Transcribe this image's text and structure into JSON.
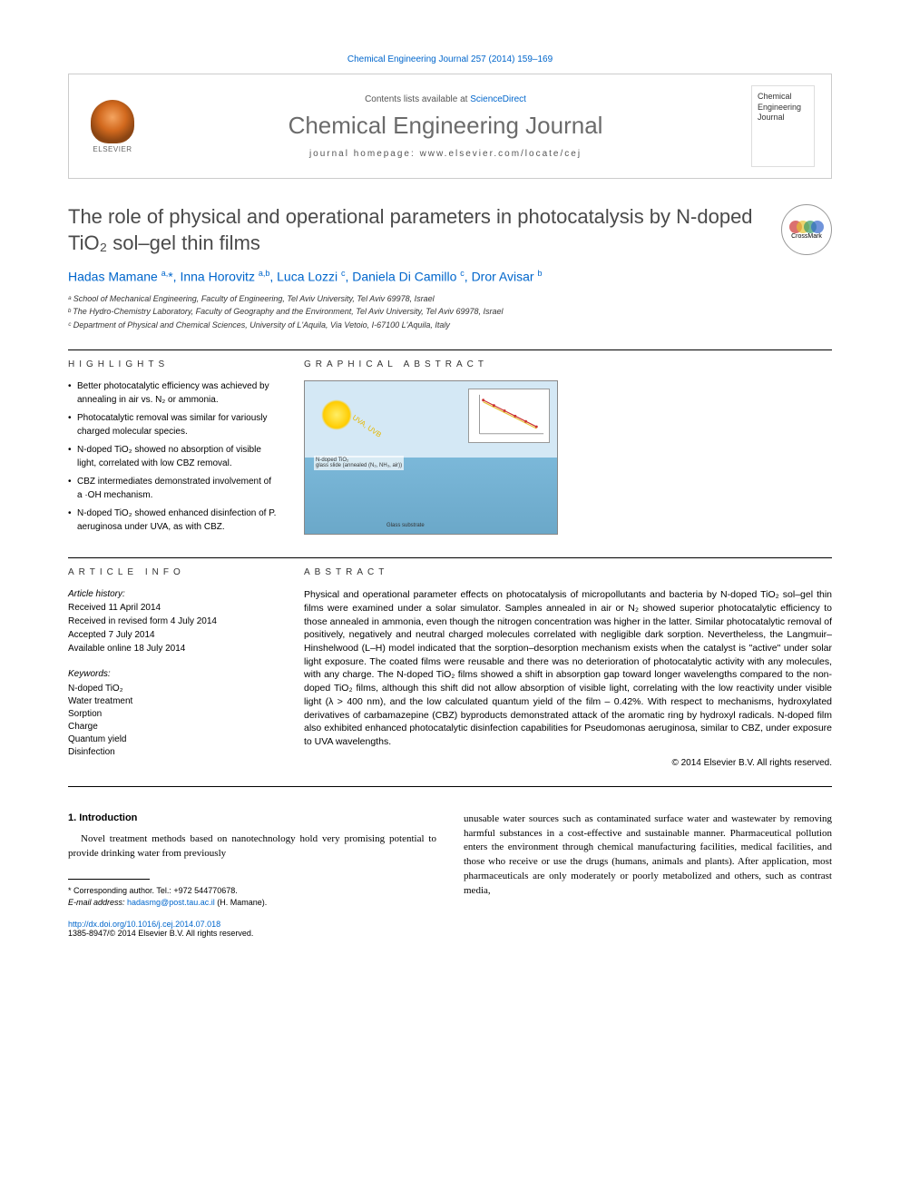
{
  "citation": "Chemical Engineering Journal 257 (2014) 159–169",
  "header": {
    "contents_prefix": "Contents lists available at ",
    "contents_link": "ScienceDirect",
    "journal_name": "Chemical Engineering Journal",
    "homepage_prefix": "journal homepage: ",
    "homepage_url": "www.elsevier.com/locate/cej",
    "publisher": "ELSEVIER",
    "cover_text": "Chemical Engineering Journal"
  },
  "crossmark_label": "CrossMark",
  "title": "The role of physical and operational parameters in photocatalysis by N-doped TiO₂ sol–gel thin films",
  "authors_html": "Hadas Mamane <sup>a,</sup>*, Inna Horovitz <sup>a,b</sup>, Luca Lozzi <sup>c</sup>, Daniela Di Camillo <sup>c</sup>, Dror Avisar <sup>b</sup>",
  "affiliations": [
    "ᵃ School of Mechanical Engineering, Faculty of Engineering, Tel Aviv University, Tel Aviv 69978, Israel",
    "ᵇ The Hydro-Chemistry Laboratory, Faculty of Geography and the Environment, Tel Aviv University, Tel Aviv 69978, Israel",
    "ᶜ Department of Physical and Chemical Sciences, University of L'Aquila, Via Vetoio, I-67100 L'Aquila, Italy"
  ],
  "highlights": {
    "label": "HIGHLIGHTS",
    "items": [
      "Better photocatalytic efficiency was achieved by annealing in air vs. N₂ or ammonia.",
      "Photocatalytic removal was similar for variously charged molecular species.",
      "N-doped TiO₂ showed no absorption of visible light, correlated with low CBZ removal.",
      "CBZ intermediates demonstrated involvement of a ·OH mechanism.",
      "N-doped TiO₂ showed enhanced disinfection of P. aeruginosa under UVA, as with CBZ."
    ]
  },
  "graphical_abstract_label": "GRAPHICAL ABSTRACT",
  "article_info": {
    "label": "ARTICLE INFO",
    "history_heading": "Article history:",
    "history": [
      "Received 11 April 2014",
      "Received in revised form 4 July 2014",
      "Accepted 7 July 2014",
      "Available online 18 July 2014"
    ],
    "keywords_heading": "Keywords:",
    "keywords": [
      "N-doped TiO₂",
      "Water treatment",
      "Sorption",
      "Charge",
      "Quantum yield",
      "Disinfection"
    ]
  },
  "abstract": {
    "label": "ABSTRACT",
    "text": "Physical and operational parameter effects on photocatalysis of micropollutants and bacteria by N-doped TiO₂ sol–gel thin films were examined under a solar simulator. Samples annealed in air or N₂ showed superior photocatalytic efficiency to those annealed in ammonia, even though the nitrogen concentration was higher in the latter. Similar photocatalytic removal of positively, negatively and neutral charged molecules correlated with negligible dark sorption. Nevertheless, the Langmuir–Hinshelwood (L–H) model indicated that the sorption–desorption mechanism exists when the catalyst is \"active\" under solar light exposure. The coated films were reusable and there was no deterioration of photocatalytic activity with any molecules, with any charge. The N-doped TiO₂ films showed a shift in absorption gap toward longer wavelengths compared to the non-doped TiO₂ films, although this shift did not allow absorption of visible light, correlating with the low reactivity under visible light (λ > 400 nm), and the low calculated quantum yield of the film – 0.42%. With respect to mechanisms, hydroxylated derivatives of carbamazepine (CBZ) byproducts demonstrated attack of the aromatic ring by hydroxyl radicals. N-doped film also exhibited enhanced photocatalytic disinfection capabilities for Pseudomonas aeruginosa, similar to CBZ, under exposure to UVA wavelengths.",
    "copyright": "© 2014 Elsevier B.V. All rights reserved."
  },
  "body": {
    "intro_heading": "1. Introduction",
    "col1_text": "Novel treatment methods based on nanotechnology hold very promising potential to provide drinking water from previously",
    "col2_text": "unusable water sources such as contaminated surface water and wastewater by removing harmful substances in a cost-effective and sustainable manner. Pharmaceutical pollution enters the environment through chemical manufacturing facilities, medical facilities, and those who receive or use the drugs (humans, animals and plants). After application, most pharmaceuticals are only moderately or poorly metabolized and others, such as contrast media,"
  },
  "footnote": {
    "corresponding": "* Corresponding author. Tel.: +972 544770678.",
    "email_label": "E-mail address: ",
    "email": "hadasmg@post.tau.ac.il",
    "email_name": " (H. Mamane)."
  },
  "doi": {
    "url": "http://dx.doi.org/10.1016/j.cej.2014.07.018",
    "issn_line": "1385-8947/© 2014 Elsevier B.V. All rights reserved."
  },
  "colors": {
    "link": "#0066cc",
    "heading_gray": "#6b6b6b",
    "title_gray": "#4a4a4a",
    "crossmark_red": "#cc3333",
    "crossmark_yellow": "#e6c233",
    "crossmark_blue": "#3366cc",
    "crossmark_green": "#339966"
  }
}
